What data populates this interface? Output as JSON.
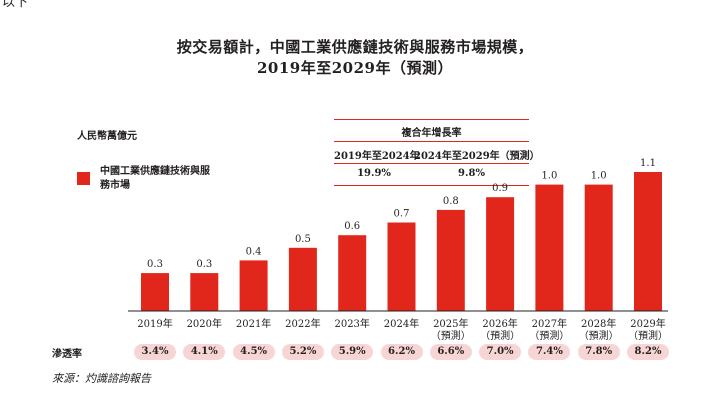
{
  "top_fragment": "以下",
  "chart_data": {
    "type": "bar",
    "title_line1": "按交易額計，中國工業供應鏈技術與服務市場規模，",
    "title_line2": "2019年至2029年（預測）",
    "unit_label": "人民幣萬億元",
    "series": [
      {
        "name": "中國工業供應鏈技術與服務市場",
        "values": [
          0.3,
          0.3,
          0.4,
          0.5,
          0.6,
          0.7,
          0.8,
          0.9,
          1.0,
          1.0,
          1.1
        ],
        "labels": [
          "0.3",
          "0.3",
          "0.4",
          "0.5",
          "0.6",
          "0.7",
          "0.8",
          "0.9",
          "1.0",
          "1.0",
          "1.1"
        ]
      }
    ],
    "categories": [
      [
        "2019年"
      ],
      [
        "2020年"
      ],
      [
        "2021年"
      ],
      [
        "2022年"
      ],
      [
        "2023年"
      ],
      [
        "2024年"
      ],
      [
        "2025年",
        "（預測）"
      ],
      [
        "2026年",
        "（預測）"
      ],
      [
        "2027年",
        "（預測）"
      ],
      [
        "2028年",
        "（預測）"
      ],
      [
        "2029年",
        "（預測）"
      ]
    ],
    "ylim": [
      0,
      1.2
    ],
    "grid": false,
    "legend_position": "left",
    "bar_color": "#e1261c",
    "cagr": {
      "title": "複合年增長率",
      "periods": [
        {
          "label": "2019年至2024年",
          "value": "19.9%"
        },
        {
          "label": "2024年至2029年（預測）",
          "value": "9.8%"
        }
      ]
    },
    "penetration": {
      "label": "滲透率",
      "values": [
        "3.4%",
        "4.1%",
        "4.5%",
        "5.2%",
        "5.9%",
        "6.2%",
        "6.6%",
        "7.0%",
        "7.4%",
        "7.8%",
        "8.2%"
      ]
    }
  },
  "source_note": "來源：灼識諮詢報告",
  "colors": {
    "bar": "#e1261c",
    "pill": "#f7d5d5",
    "axis": "#231f20"
  }
}
